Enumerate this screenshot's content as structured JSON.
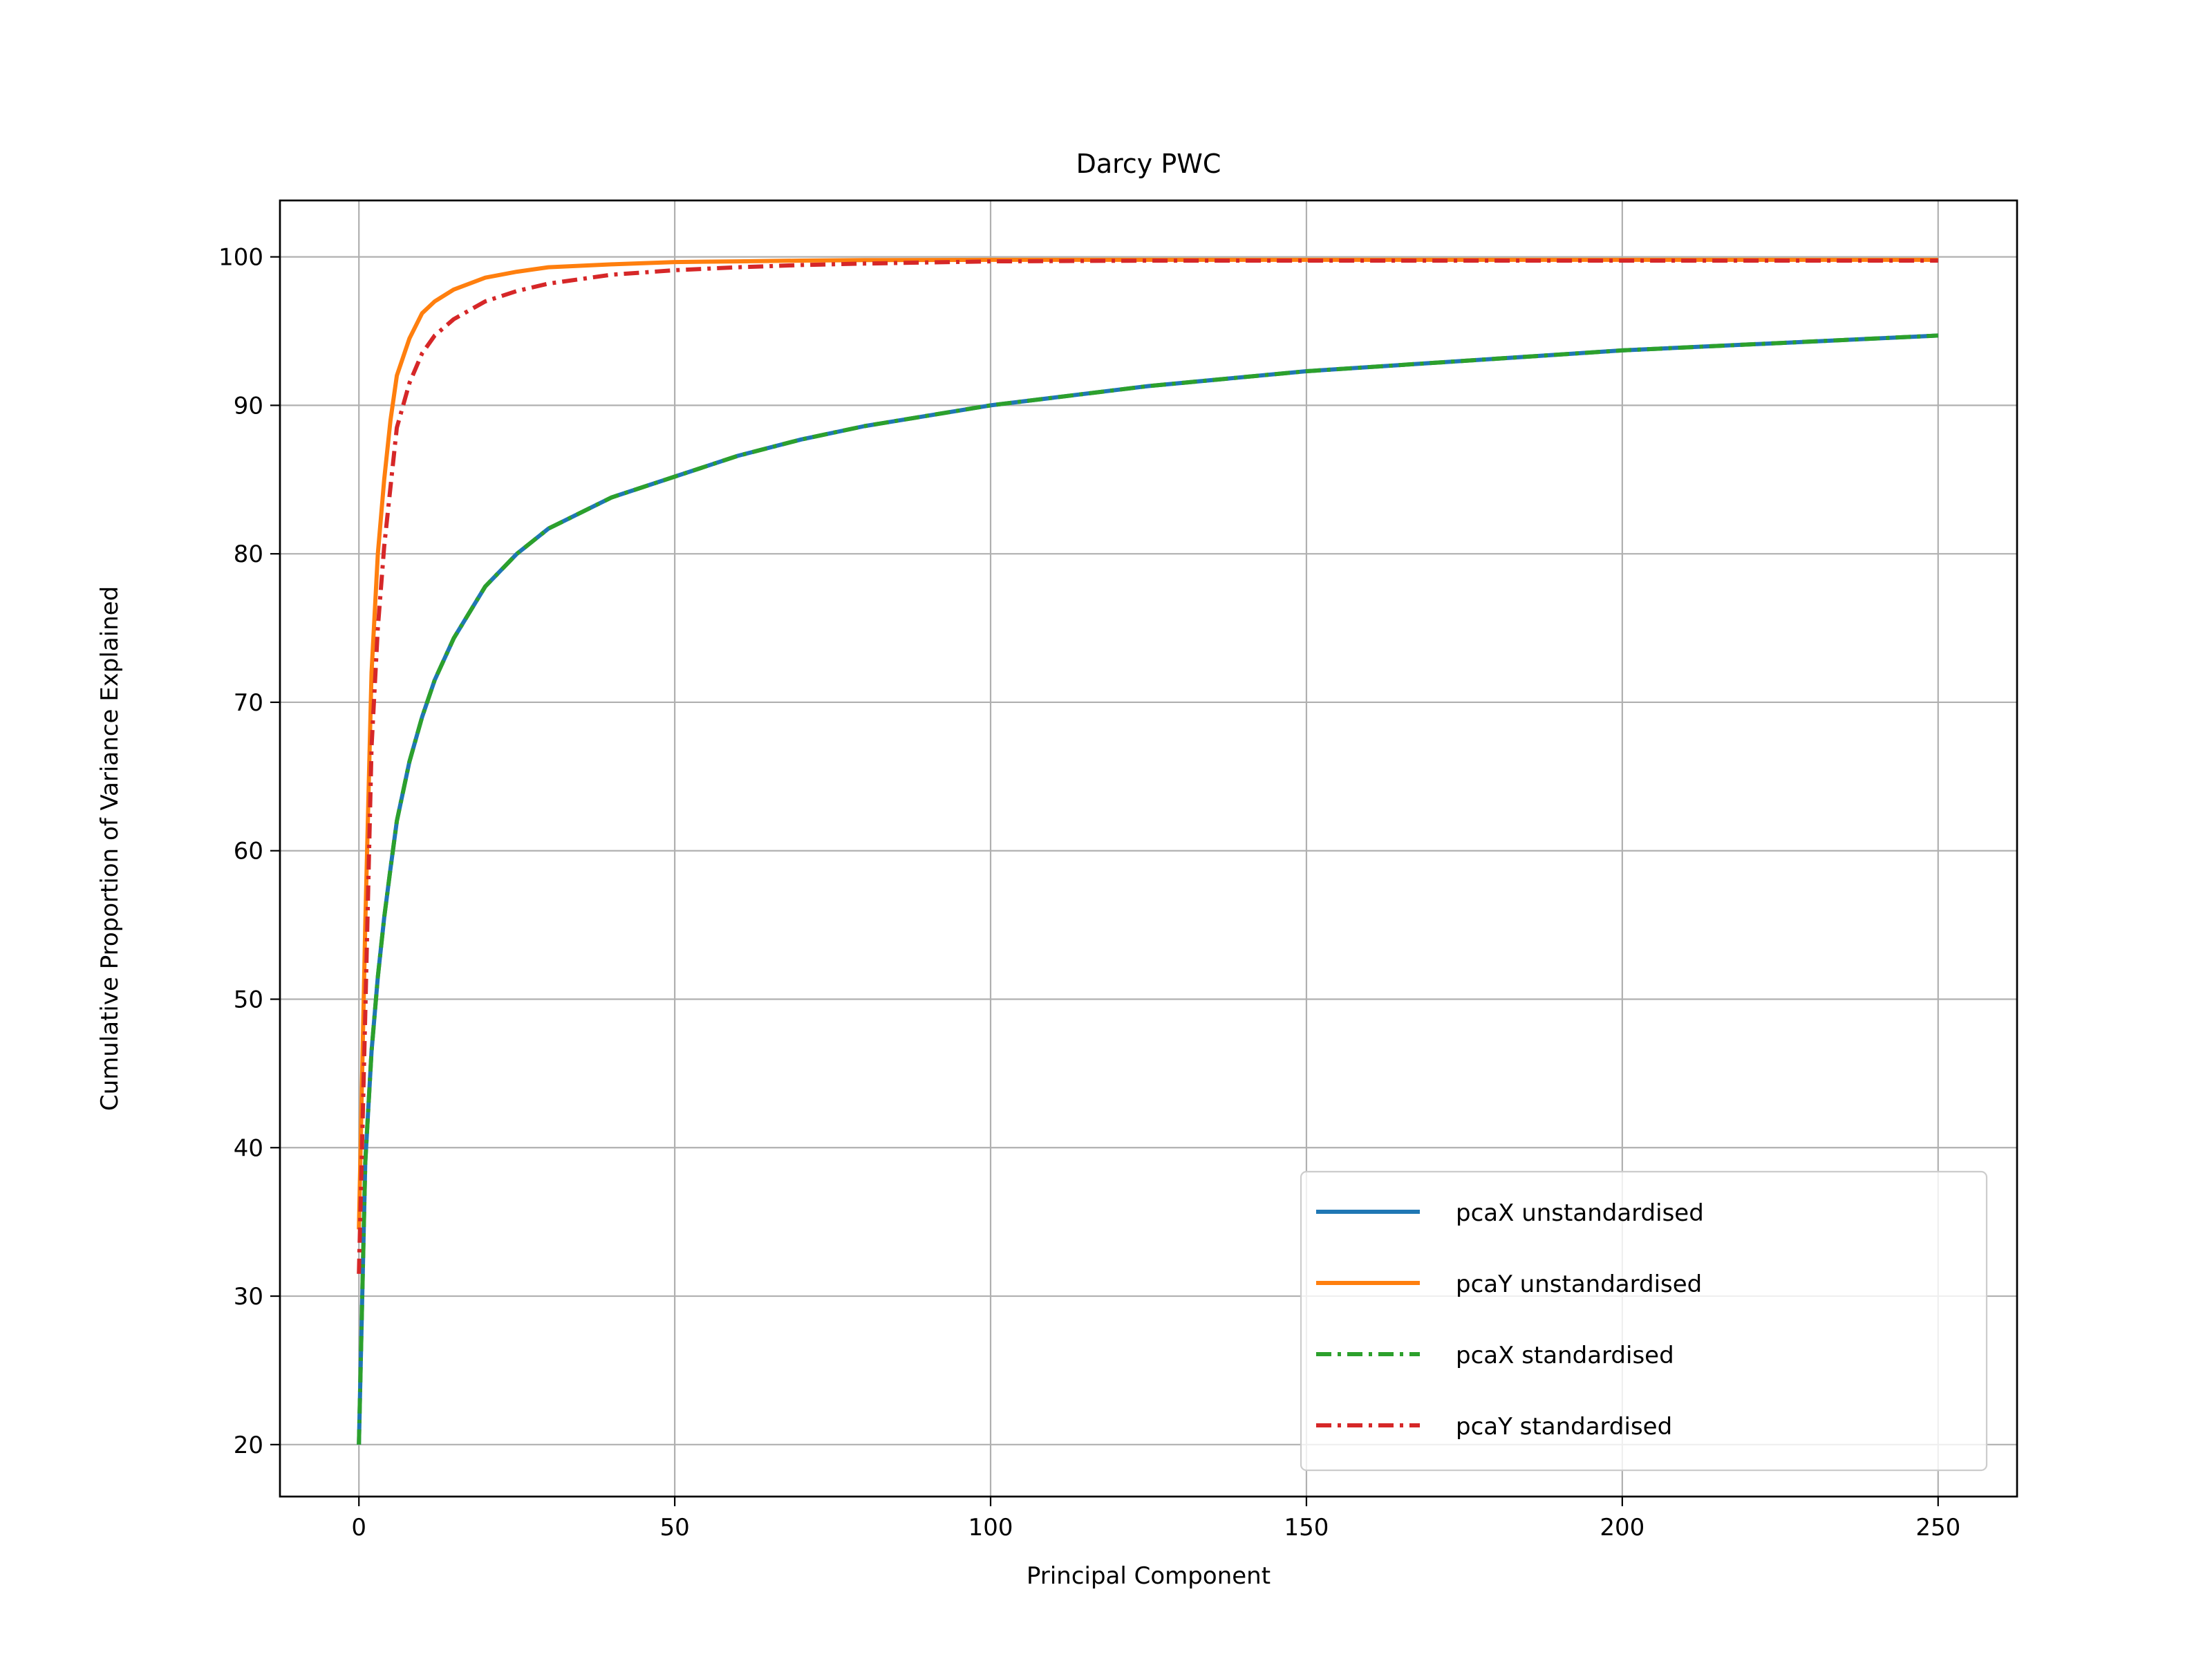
{
  "chart_data": {
    "type": "line",
    "title": "Darcy PWC",
    "xlabel": "Principal Component",
    "ylabel": "Cumulative Proportion of Variance Explained",
    "xlim": [
      -12.5,
      262.5
    ],
    "ylim": [
      16.5,
      103.8
    ],
    "x_ticks": [
      0,
      50,
      100,
      150,
      200,
      250
    ],
    "y_ticks": [
      20,
      30,
      40,
      50,
      60,
      70,
      80,
      90,
      100
    ],
    "grid": true,
    "legend_position": "lower right",
    "series": [
      {
        "name": "pcaX unstandardised",
        "color": "#1f77b4",
        "style": "solid",
        "x": [
          0,
          1,
          2,
          3,
          4,
          5,
          6,
          8,
          10,
          12,
          15,
          20,
          25,
          30,
          40,
          50,
          60,
          70,
          80,
          90,
          100,
          125,
          150,
          175,
          200,
          225,
          250
        ],
        "y": [
          20.0,
          39.0,
          46.5,
          51.5,
          55.5,
          58.8,
          62.0,
          66.0,
          69.0,
          71.5,
          74.3,
          77.8,
          80.0,
          81.7,
          83.8,
          85.2,
          86.6,
          87.7,
          88.6,
          89.3,
          90.0,
          91.3,
          92.3,
          93.0,
          93.7,
          94.2,
          94.7
        ]
      },
      {
        "name": "pcaY unstandardised",
        "color": "#ff7f0e",
        "style": "solid",
        "x": [
          0,
          1,
          2,
          3,
          4,
          5,
          6,
          8,
          10,
          12,
          15,
          20,
          25,
          30,
          40,
          50,
          60,
          70,
          80,
          100,
          125,
          150,
          175,
          200,
          225,
          250
        ],
        "y": [
          34.5,
          55.0,
          72.0,
          80.0,
          85.0,
          89.0,
          92.0,
          94.5,
          96.2,
          97.0,
          97.8,
          98.6,
          99.0,
          99.3,
          99.5,
          99.65,
          99.7,
          99.75,
          99.78,
          99.8,
          99.8,
          99.8,
          99.8,
          99.8,
          99.8,
          99.8
        ]
      },
      {
        "name": "pcaX standardised",
        "color": "#2ca02c",
        "style": "dashdot",
        "x": [
          0,
          1,
          2,
          3,
          4,
          5,
          6,
          8,
          10,
          12,
          15,
          20,
          25,
          30,
          40,
          50,
          60,
          70,
          80,
          90,
          100,
          125,
          150,
          175,
          200,
          225,
          250
        ],
        "y": [
          20.0,
          39.0,
          46.5,
          51.5,
          55.5,
          58.8,
          62.0,
          66.0,
          69.0,
          71.5,
          74.3,
          77.8,
          80.0,
          81.7,
          83.8,
          85.2,
          86.6,
          87.7,
          88.6,
          89.3,
          90.0,
          91.3,
          92.3,
          93.0,
          93.7,
          94.2,
          94.7
        ]
      },
      {
        "name": "pcaY standardised",
        "color": "#d62728",
        "style": "dashdot",
        "x": [
          0,
          1,
          2,
          3,
          4,
          5,
          6,
          8,
          10,
          12,
          15,
          20,
          25,
          30,
          40,
          50,
          60,
          70,
          80,
          100,
          125,
          150,
          175,
          200,
          225,
          250
        ],
        "y": [
          31.5,
          49.0,
          67.0,
          75.0,
          80.5,
          84.5,
          88.5,
          91.5,
          93.5,
          94.7,
          95.8,
          97.0,
          97.7,
          98.2,
          98.8,
          99.1,
          99.3,
          99.45,
          99.55,
          99.7,
          99.75,
          99.75,
          99.75,
          99.75,
          99.75,
          99.75
        ]
      }
    ]
  }
}
